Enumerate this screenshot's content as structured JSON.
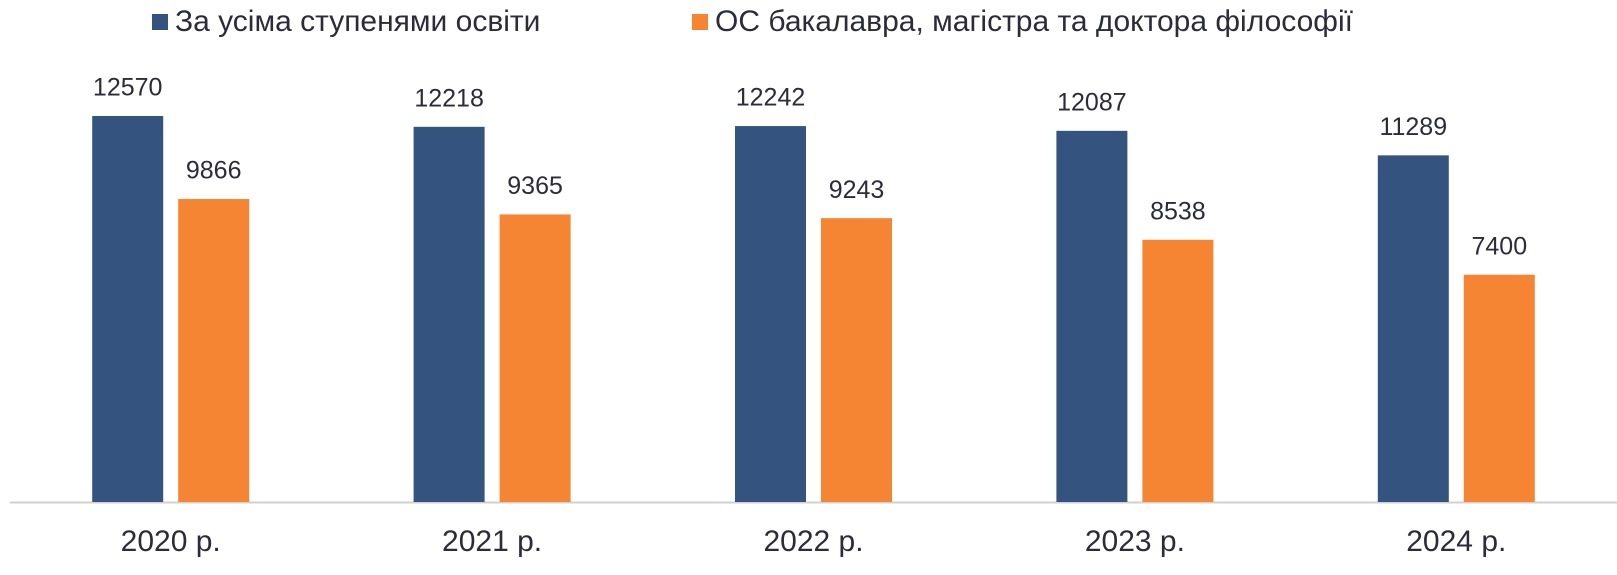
{
  "chart_data": {
    "type": "bar",
    "categories": [
      "2020 р.",
      "2021 р.",
      "2022 р.",
      "2023 р.",
      "2024 р."
    ],
    "series": [
      {
        "name": "За усіма ступенями освіти",
        "color": "#34547f",
        "values": [
          12570,
          12218,
          12242,
          12087,
          11289
        ]
      },
      {
        "name": "ОС бакалавра, магістра та доктора філософії",
        "color": "#f58533",
        "values": [
          9866,
          9365,
          9243,
          8538,
          7400
        ]
      }
    ],
    "legend": "top"
  }
}
